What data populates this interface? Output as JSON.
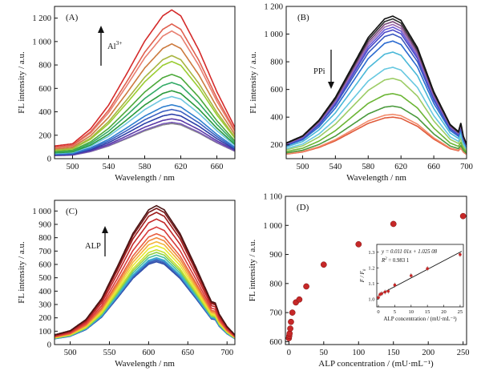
{
  "chart_data": [
    {
      "id": "A",
      "type": "line",
      "panel_label": "(A)",
      "xlabel": "Wavelength / nm",
      "ylabel": "FL intensity / a.u.",
      "xlim": [
        480,
        680
      ],
      "ylim": [
        0,
        1300
      ],
      "xticks": [
        500,
        540,
        580,
        620,
        660
      ],
      "yticks": [
        0,
        200,
        400,
        600,
        800,
        1000,
        1200
      ],
      "ytick_labels": [
        "0",
        "200",
        "400",
        "600",
        "800",
        "1 000",
        "1 200"
      ],
      "annotation": {
        "text": "Al",
        "sup": "3+",
        "arrow": "up"
      },
      "curve_shape": {
        "x": [
          480,
          500,
          520,
          540,
          560,
          580,
          600,
          610,
          620,
          640,
          660,
          680
        ],
        "rel": [
          0.085,
          0.1,
          0.2,
          0.36,
          0.57,
          0.79,
          0.96,
          1.0,
          0.96,
          0.73,
          0.45,
          0.21
        ]
      },
      "peaks": [
        1270,
        1150,
        1090,
        980,
        880,
        830,
        720,
        650,
        580,
        530,
        460,
        420,
        380,
        340,
        310,
        300
      ],
      "colors": [
        "#d42a2a",
        "#e0604f",
        "#e87f70",
        "#cc7a3e",
        "#a8b540",
        "#9acd32",
        "#4ca93b",
        "#33aa66",
        "#2a9a3c",
        "#6fc6e0",
        "#2f7fcf",
        "#3b5fc0",
        "#2a3ea8",
        "#5a3aa8",
        "#7a5bb8",
        "#8a8a8a"
      ]
    },
    {
      "id": "B",
      "type": "line",
      "panel_label": "(B)",
      "xlabel": "Wavelength / nm",
      "ylabel": "FL intensity / a.u.",
      "xlim": [
        480,
        700
      ],
      "ylim": [
        100,
        1200
      ],
      "xticks": [
        500,
        540,
        580,
        620,
        660,
        700
      ],
      "yticks": [
        200,
        400,
        600,
        800,
        1000,
        1200
      ],
      "ytick_labels": [
        "200",
        "400",
        "600",
        "800",
        "1 000",
        "1 200"
      ],
      "annotation": {
        "text": "PPi",
        "arrow": "down"
      },
      "curve_shape": {
        "x": [
          480,
          500,
          520,
          540,
          560,
          580,
          600,
          610,
          620,
          640,
          660,
          680,
          690,
          693,
          696,
          700
        ],
        "rel": [
          0.11,
          0.16,
          0.27,
          0.43,
          0.64,
          0.85,
          0.98,
          1.0,
          0.97,
          0.78,
          0.47,
          0.24,
          0.19,
          0.25,
          0.16,
          0.1
        ]
      },
      "peaks": [
        1130,
        1110,
        1090,
        1070,
        1050,
        1030,
        1000,
        950,
        870,
        760,
        680,
        570,
        480,
        420,
        400
      ],
      "colors": [
        "#111111",
        "#2b2b2b",
        "#7a4a7a",
        "#9e6bb3",
        "#6a5bd8",
        "#4a48c8",
        "#3a58c0",
        "#2a6ad0",
        "#4ab8d8",
        "#67c8e0",
        "#9ccc65",
        "#6bb534",
        "#4a9a3c",
        "#f28a6a",
        "#e05a3a"
      ]
    },
    {
      "id": "C",
      "type": "line",
      "panel_label": "(C)",
      "xlabel": "Wavelength / nm",
      "ylabel": "FL intensity / a.u.",
      "xlim": [
        480,
        710
      ],
      "ylim": [
        0,
        1080
      ],
      "xticks": [
        500,
        550,
        600,
        650,
        700
      ],
      "yticks": [
        0,
        100,
        200,
        300,
        400,
        500,
        600,
        700,
        800,
        900,
        1000
      ],
      "ytick_labels": [
        "0",
        "100",
        "200",
        "300",
        "400",
        "500",
        "600",
        "700",
        "800",
        "900",
        "1 000"
      ],
      "annotation": {
        "text": "ALP",
        "arrow": "up"
      },
      "curve_shape": {
        "x": [
          480,
          500,
          520,
          540,
          560,
          580,
          600,
          610,
          620,
          640,
          660,
          680,
          685,
          690,
          700,
          710
        ],
        "rel": [
          0.07,
          0.1,
          0.18,
          0.33,
          0.56,
          0.8,
          0.97,
          1.0,
          0.97,
          0.8,
          0.56,
          0.31,
          0.3,
          0.22,
          0.13,
          0.07
        ]
      },
      "peaks": [
        1040,
        1020,
        990,
        940,
        880,
        830,
        800,
        770,
        740,
        710,
        690,
        670,
        650,
        640,
        630,
        620
      ],
      "colors": [
        "#4a1414",
        "#7a1a1a",
        "#a01e1e",
        "#c42828",
        "#d83a3a",
        "#e86040",
        "#f08a3a",
        "#f4b43a",
        "#e8e830",
        "#c8e030",
        "#8ed04a",
        "#4ac0a0",
        "#38a8d0",
        "#3a7ec8",
        "#3a5ab8",
        "#2f4ea8"
      ]
    },
    {
      "id": "D",
      "type": "scatter",
      "panel_label": "(D)",
      "xlabel": "ALP concentration / (mU·mL⁻¹)",
      "ylabel": "FL intensity / a.u.",
      "xlim": [
        -5,
        255
      ],
      "ylim": [
        590,
        1100
      ],
      "xticks": [
        0,
        50,
        100,
        150,
        200,
        250
      ],
      "yticks": [
        600,
        700,
        800,
        900,
        1000,
        1100
      ],
      "ytick_labels": [
        "600",
        "700",
        "800",
        "900",
        "1 000",
        "1 100"
      ],
      "x": [
        0,
        0.5,
        1,
        2,
        3,
        5,
        10,
        15,
        25,
        50,
        100,
        150,
        250
      ],
      "y": [
        612,
        620,
        628,
        645,
        668,
        700,
        735,
        745,
        790,
        865,
        935,
        1005,
        1032
      ],
      "color": "#c62828",
      "inset": {
        "type": "scatter",
        "xlabel": "ALP concentration / (mU·mL⁻¹)",
        "ylabel_main": "F / F",
        "ylabel_sub": "0",
        "xlim": [
          -0.5,
          26
        ],
        "ylim": [
          0.95,
          1.35
        ],
        "xticks": [
          0,
          5,
          10,
          15,
          20,
          25
        ],
        "yticks": [
          1.0,
          1.1,
          1.2,
          1.3
        ],
        "ytick_labels": [
          "1.0",
          "1.1",
          "1.2",
          "1.3"
        ],
        "x": [
          0,
          0.5,
          1,
          2,
          3,
          5,
          10,
          15,
          25
        ],
        "y": [
          1.01,
          1.03,
          1.035,
          1.045,
          1.05,
          1.09,
          1.15,
          1.195,
          1.285
        ],
        "fit": {
          "slope": 0.01101,
          "intercept": 1.02508
        },
        "equation": "y = 0.011 01x + 1.025 08",
        "r2_label": "R",
        "r2_sup": "2",
        "r2_value": " = 0.983 1"
      }
    }
  ]
}
